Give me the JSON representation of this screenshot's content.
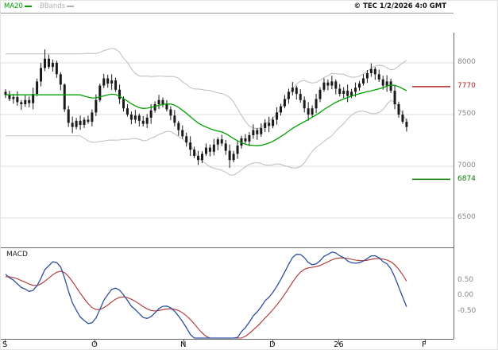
{
  "header": {
    "legend": [
      {
        "label": "MA20",
        "color": "#00a000"
      },
      {
        "label": "BBands",
        "color": "#b0b0b0"
      }
    ],
    "copyright": "© TEC 1/2/2026 4:0 GMT"
  },
  "chart_data": {
    "type": "candlestick",
    "title": "Daily price chart with MA20, Bollinger Bands and MACD",
    "panels": {
      "main": {
        "indicators": [
          "MA20",
          "BBands"
        ]
      },
      "lower": {
        "label": "MACD",
        "series": [
          "MACD",
          "Signal"
        ]
      }
    },
    "price_axis": {
      "ticks": [
        "8000",
        "7500",
        "7000",
        "6500"
      ],
      "ylim": [
        6215,
        8485
      ],
      "levels": [
        {
          "label": "7770",
          "value": 7770,
          "color": "#b22222"
        },
        {
          "label": "6874",
          "value": 6874,
          "color": "#007a00"
        }
      ]
    },
    "macd_axis": {
      "ticks": [
        "0.50",
        "0.00",
        "-0.50"
      ],
      "ylim": [
        -1.4,
        1.55
      ]
    },
    "x_axis": {
      "labels": [
        "S",
        "O",
        "N",
        "D",
        "26",
        "F"
      ]
    },
    "colors": {
      "candle": "#1a1a1a",
      "ma20": "#00a000",
      "bbands": "#bdbdbd",
      "macd_line": "#2b4fa0",
      "macd_signal": "#b03030",
      "grid": "#dcdcdc",
      "axis": "#666666"
    },
    "candles": [
      [
        7720,
        7745,
        7660,
        7690
      ],
      [
        7690,
        7730,
        7630,
        7650
      ],
      [
        7650,
        7700,
        7605,
        7670
      ],
      [
        7670,
        7725,
        7585,
        7620
      ],
      [
        7620,
        7640,
        7545,
        7600
      ],
      [
        7600,
        7685,
        7575,
        7640
      ],
      [
        7640,
        7675,
        7570,
        7610
      ],
      [
        7610,
        7760,
        7550,
        7700
      ],
      [
        7700,
        7848,
        7678,
        7820
      ],
      [
        7820,
        8000,
        7772,
        7950
      ],
      [
        7950,
        8130,
        7920,
        8040
      ],
      [
        8040,
        8080,
        7940,
        7960
      ],
      [
        7960,
        8030,
        7915,
        8000
      ],
      [
        8000,
        8020,
        7855,
        7890
      ],
      [
        7890,
        7910,
        7735,
        7790
      ],
      [
        7790,
        7800,
        7525,
        7550
      ],
      [
        7550,
        7585,
        7380,
        7420
      ],
      [
        7420,
        7480,
        7320,
        7380
      ],
      [
        7380,
        7468,
        7358,
        7440
      ],
      [
        7440,
        7490,
        7352,
        7400
      ],
      [
        7400,
        7475,
        7370,
        7450
      ],
      [
        7450,
        7490,
        7410,
        7430
      ],
      [
        7430,
        7550,
        7385,
        7520
      ],
      [
        7520,
        7695,
        7485,
        7640
      ],
      [
        7640,
        7800,
        7620,
        7780
      ],
      [
        7780,
        7895,
        7755,
        7850
      ],
      [
        7850,
        7885,
        7760,
        7800
      ],
      [
        7800,
        7890,
        7740,
        7830
      ],
      [
        7830,
        7858,
        7718,
        7740
      ],
      [
        7740,
        7790,
        7602,
        7650
      ],
      [
        7650,
        7675,
        7530,
        7560
      ],
      [
        7560,
        7600,
        7480,
        7500
      ],
      [
        7500,
        7530,
        7405,
        7450
      ],
      [
        7450,
        7545,
        7415,
        7490
      ],
      [
        7490,
        7510,
        7385,
        7440
      ],
      [
        7440,
        7485,
        7385,
        7410
      ],
      [
        7410,
        7505,
        7370,
        7470
      ],
      [
        7470,
        7600,
        7410,
        7540
      ],
      [
        7540,
        7628,
        7518,
        7600
      ],
      [
        7600,
        7690,
        7552,
        7640
      ],
      [
        7640,
        7665,
        7570,
        7600
      ],
      [
        7600,
        7640,
        7530,
        7550
      ],
      [
        7550,
        7580,
        7445,
        7490
      ],
      [
        7490,
        7545,
        7385,
        7420
      ],
      [
        7420,
        7440,
        7295,
        7350
      ],
      [
        7350,
        7395,
        7265,
        7290
      ],
      [
        7290,
        7325,
        7190,
        7230
      ],
      [
        7230,
        7290,
        7100,
        7160
      ],
      [
        7160,
        7188,
        7078,
        7100
      ],
      [
        7100,
        7150,
        7012,
        7060
      ],
      [
        7060,
        7145,
        7030,
        7120
      ],
      [
        7120,
        7220,
        7100,
        7180
      ],
      [
        7180,
        7210,
        7095,
        7140
      ],
      [
        7140,
        7265,
        7105,
        7210
      ],
      [
        7210,
        7280,
        7155,
        7260
      ],
      [
        7260,
        7305,
        7195,
        7220
      ],
      [
        7220,
        7255,
        7110,
        7150
      ],
      [
        7150,
        7210,
        6985,
        7060
      ],
      [
        7060,
        7148,
        7038,
        7120
      ],
      [
        7120,
        7250,
        7072,
        7200
      ],
      [
        7200,
        7295,
        7170,
        7270
      ],
      [
        7270,
        7310,
        7220,
        7240
      ],
      [
        7240,
        7330,
        7195,
        7300
      ],
      [
        7300,
        7405,
        7265,
        7350
      ],
      [
        7350,
        7370,
        7255,
        7310
      ],
      [
        7310,
        7415,
        7285,
        7370
      ],
      [
        7370,
        7455,
        7330,
        7420
      ],
      [
        7420,
        7480,
        7330,
        7390
      ],
      [
        7390,
        7478,
        7368,
        7450
      ],
      [
        7450,
        7570,
        7402,
        7520
      ],
      [
        7520,
        7605,
        7490,
        7580
      ],
      [
        7580,
        7690,
        7560,
        7650
      ],
      [
        7650,
        7750,
        7605,
        7720
      ],
      [
        7720,
        7815,
        7685,
        7760
      ],
      [
        7760,
        7780,
        7645,
        7700
      ],
      [
        7700,
        7745,
        7615,
        7640
      ],
      [
        7640,
        7675,
        7520,
        7560
      ],
      [
        7560,
        7620,
        7440,
        7500
      ],
      [
        7500,
        7588,
        7478,
        7560
      ],
      [
        7560,
        7700,
        7512,
        7650
      ],
      [
        7650,
        7765,
        7620,
        7740
      ],
      [
        7740,
        7850,
        7720,
        7810
      ],
      [
        7810,
        7840,
        7735,
        7780
      ],
      [
        7780,
        7875,
        7745,
        7820
      ],
      [
        7820,
        7840,
        7695,
        7750
      ],
      [
        7750,
        7795,
        7675,
        7700
      ],
      [
        7700,
        7765,
        7660,
        7730
      ],
      [
        7730,
        7790,
        7620,
        7680
      ],
      [
        7680,
        7748,
        7658,
        7720
      ],
      [
        7720,
        7810,
        7672,
        7760
      ],
      [
        7760,
        7825,
        7730,
        7800
      ],
      [
        7800,
        7890,
        7780,
        7850
      ],
      [
        7850,
        7930,
        7805,
        7900
      ],
      [
        7900,
        7995,
        7865,
        7940
      ],
      [
        7940,
        7960,
        7835,
        7890
      ],
      [
        7890,
        7935,
        7815,
        7840
      ],
      [
        7840,
        7875,
        7740,
        7780
      ],
      [
        7780,
        7880,
        7720,
        7820
      ],
      [
        7820,
        7848,
        7708,
        7730
      ],
      [
        7730,
        7780,
        7552,
        7600
      ],
      [
        7600,
        7625,
        7470,
        7500
      ],
      [
        7500,
        7540,
        7410,
        7430
      ],
      [
        7430,
        7460,
        7335,
        7380
      ]
    ]
  }
}
